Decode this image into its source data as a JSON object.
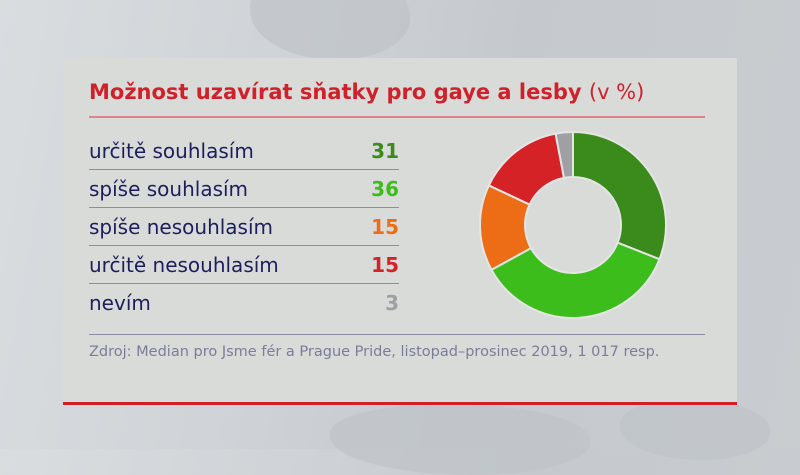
{
  "title": "Možnost uzavírat sňatky pro gaye a lesby",
  "title_unit": "(v %)",
  "rows": [
    {
      "label": "určitě souhlasím",
      "value": "31",
      "color": "#3b8a1c"
    },
    {
      "label": "spíše souhlasím",
      "value": "36",
      "color": "#3dbd1c"
    },
    {
      "label": "spíše nesouhlasím",
      "value": "15",
      "color": "#ec6d16"
    },
    {
      "label": "určitě nesouhlasím",
      "value": "15",
      "color": "#d52226"
    },
    {
      "label": "nevím",
      "value": "3",
      "color": "#9ea0a4"
    }
  ],
  "source": "Zdroj: Median pro Jsme fér a Prague Pride, listopad–prosinec 2019, 1 017 resp.",
  "colors": {
    "accent_red": "#d0202a",
    "label_navy": "#1d1f5c",
    "panel_bg": "#d9dbd9"
  },
  "chart_data": {
    "type": "pie",
    "subtype": "donut",
    "title": "Možnost uzavírat sňatky pro gaye a lesby (v %)",
    "categories": [
      "určitě souhlasím",
      "spíše souhlasím",
      "spíše nesouhlasím",
      "určitě nesouhlasím",
      "nevím"
    ],
    "values": [
      31,
      36,
      15,
      15,
      3
    ],
    "colors": [
      "#3b8a1c",
      "#3dbd1c",
      "#ec6d16",
      "#d52226",
      "#9ea0a4"
    ],
    "unit": "%",
    "start_angle": "12 o'clock, clockwise",
    "legend_position": "left (as table)",
    "source": "Zdroj: Median pro Jsme fér a Prague Pride, listopad–prosinec 2019, 1 017 resp."
  }
}
